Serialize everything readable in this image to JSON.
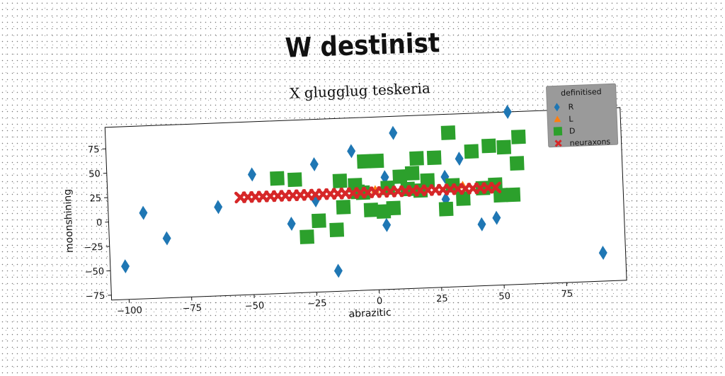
{
  "header": {
    "title": "W destinist"
  },
  "chart_data": {
    "type": "scatter",
    "title": "X glugglug teskeria",
    "xlabel": "abrazitic",
    "ylabel": "moonshining",
    "xlim": [
      -107,
      99
    ],
    "ylim": [
      -80,
      97
    ],
    "xticks": [
      -100,
      -75,
      -50,
      -25,
      0,
      25,
      50,
      75
    ],
    "yticks": [
      -75,
      -50,
      -25,
      0,
      25,
      50,
      75
    ],
    "legend": {
      "title": "definitised",
      "placement": "top-right"
    },
    "series": [
      {
        "name": "R",
        "marker": "diamond",
        "color": "#1f77b4",
        "points": [
          [
            -101,
            -46
          ],
          [
            -93,
            8
          ],
          [
            -84,
            -19
          ],
          [
            -63,
            11
          ],
          [
            -49,
            43
          ],
          [
            -34,
            -9
          ],
          [
            -24,
            51
          ],
          [
            -24,
            14
          ],
          [
            -16,
            -59
          ],
          [
            -9,
            63
          ],
          [
            4,
            35
          ],
          [
            4,
            -14
          ],
          [
            8,
            80
          ],
          [
            28,
            33
          ],
          [
            28,
            10
          ],
          [
            34,
            51
          ],
          [
            42,
            -17
          ],
          [
            48,
            -11
          ],
          [
            54,
            97
          ],
          [
            90,
            -51
          ]
        ]
      },
      {
        "name": "L",
        "marker": "triangle",
        "color": "#ff7f0e",
        "points": [
          [
            0,
            23
          ],
          [
            20,
            24
          ],
          [
            35,
            24
          ]
        ]
      },
      {
        "name": "D",
        "marker": "square",
        "color": "#2ca02c",
        "points": [
          [
            -39,
            38
          ],
          [
            -32,
            36
          ],
          [
            -28,
            -23
          ],
          [
            -23,
            -7
          ],
          [
            -16,
            -17
          ],
          [
            -14,
            33
          ],
          [
            -13,
            6
          ],
          [
            -8,
            28
          ],
          [
            -7,
            21
          ],
          [
            -5,
            20
          ],
          [
            -4,
            52
          ],
          [
            -2,
            2
          ],
          [
            1,
            52
          ],
          [
            3,
            0
          ],
          [
            5,
            24
          ],
          [
            7,
            3
          ],
          [
            10,
            35
          ],
          [
            13,
            22
          ],
          [
            15,
            38
          ],
          [
            17,
            53
          ],
          [
            18,
            20
          ],
          [
            21,
            30
          ],
          [
            24,
            53
          ],
          [
            28,
            0
          ],
          [
            30,
            78
          ],
          [
            31,
            24
          ],
          [
            35,
            10
          ],
          [
            39,
            58
          ],
          [
            43,
            20
          ],
          [
            46,
            63
          ],
          [
            48,
            23
          ],
          [
            50,
            12
          ],
          [
            52,
            61
          ],
          [
            55,
            12
          ],
          [
            57,
            44
          ],
          [
            58,
            71
          ]
        ]
      },
      {
        "name": "neuraxons",
        "marker": "x",
        "color": "#d62728",
        "points": [
          [
            -54,
            20
          ],
          [
            -51,
            20
          ],
          [
            -48,
            20
          ],
          [
            -45,
            20
          ],
          [
            -42,
            20
          ],
          [
            -39,
            20
          ],
          [
            -36,
            20
          ],
          [
            -33,
            20
          ],
          [
            -30,
            20
          ],
          [
            -27,
            20
          ],
          [
            -24,
            20
          ],
          [
            -21,
            20
          ],
          [
            -18,
            20
          ],
          [
            -15,
            20
          ],
          [
            -12,
            20
          ],
          [
            -9,
            20
          ],
          [
            -6,
            20
          ],
          [
            -3,
            20
          ],
          [
            0,
            20
          ],
          [
            3,
            20
          ],
          [
            6,
            20
          ],
          [
            9,
            20
          ],
          [
            12,
            20
          ],
          [
            15,
            20
          ],
          [
            18,
            20
          ],
          [
            21,
            20
          ],
          [
            24,
            20
          ],
          [
            27,
            20
          ],
          [
            30,
            20
          ],
          [
            33,
            20
          ],
          [
            36,
            20
          ],
          [
            39,
            20
          ],
          [
            42,
            20
          ],
          [
            45,
            20
          ],
          [
            48,
            20
          ]
        ]
      }
    ]
  }
}
